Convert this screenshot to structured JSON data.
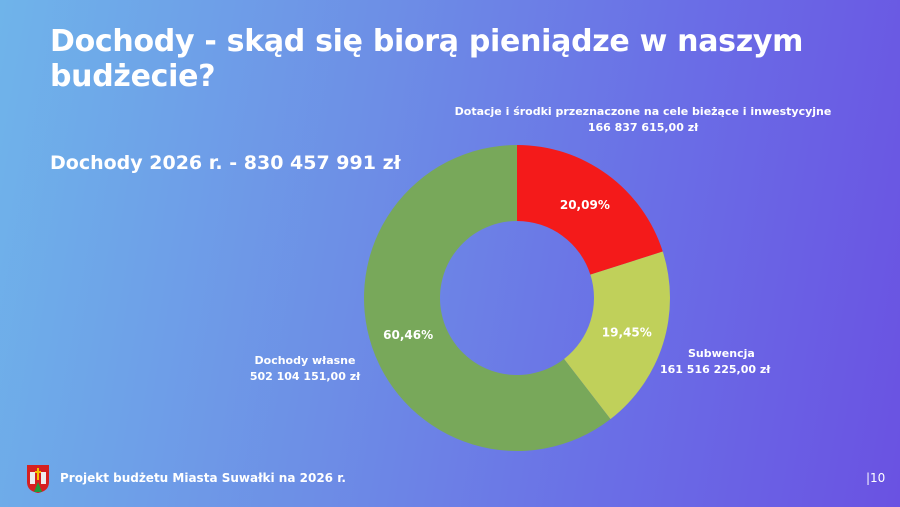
{
  "title": "Dochody - skąd się biorą pieniądze w naszym budżecie?",
  "subtitle": "Dochody 2026 r. - 830 457 991 zł",
  "footer": {
    "text": "Projekt budżetu Miasta Suwałki na 2026 r.",
    "page": "|10"
  },
  "chart_data": {
    "type": "pie",
    "donut": true,
    "start": "top",
    "direction": "clockwise",
    "slices": [
      {
        "name": "Dotacje i środki przeznaczone na cele bieżące i inwestycyjne",
        "amount": "166 837 615,00 zł",
        "value": 20.09,
        "label": "20,09%",
        "color": "#f41a1a"
      },
      {
        "name": "Subwencja",
        "amount": "161 516 225,00 zł",
        "value": 19.45,
        "label": "19,45%",
        "color": "#c0d05a"
      },
      {
        "name": "Dochody własne",
        "amount": "502 104 151,00 zł",
        "value": 60.46,
        "label": "60,46%",
        "color": "#78a85a"
      }
    ]
  }
}
